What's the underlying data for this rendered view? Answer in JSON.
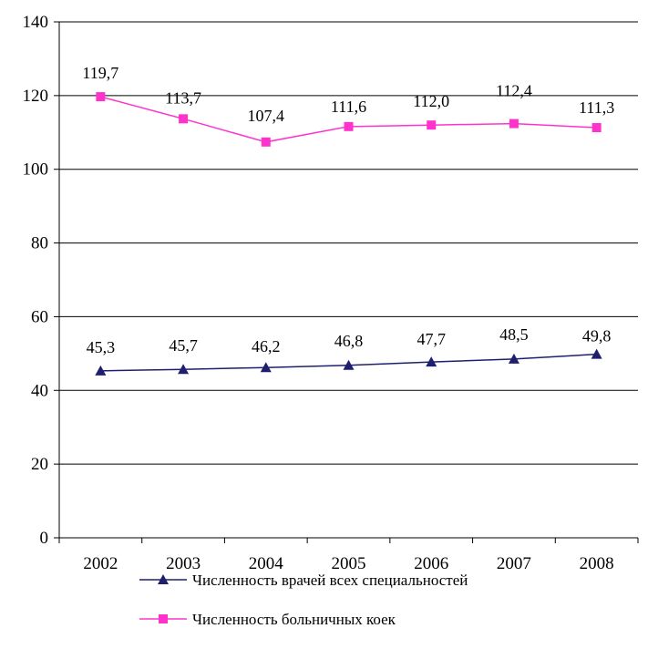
{
  "chart_data": {
    "type": "line",
    "title": "",
    "xlabel": "",
    "ylabel": "",
    "categories": [
      "2002",
      "2003",
      "2004",
      "2005",
      "2006",
      "2007",
      "2008"
    ],
    "ylim": [
      0,
      140
    ],
    "yticks": [
      0,
      20,
      40,
      60,
      80,
      100,
      120,
      140
    ],
    "grid": true,
    "legend_position": "bottom",
    "series": [
      {
        "name": "Численность врачей всех специальностей",
        "values": [
          45.3,
          45.7,
          46.2,
          46.8,
          47.7,
          48.5,
          49.8
        ],
        "labels": [
          "45,3",
          "45,7",
          "46,2",
          "46,8",
          "47,7",
          "48,5",
          "49,8"
        ],
        "color": "#1f1f6e",
        "marker": "triangle"
      },
      {
        "name": "Численность больничных коек",
        "values": [
          119.7,
          113.7,
          107.4,
          111.6,
          112.0,
          112.4,
          111.3
        ],
        "labels": [
          "119,7",
          "113,7",
          "107,4",
          "111,6",
          "112,0",
          "112,4",
          "111,3"
        ],
        "color": "#ff33cc",
        "marker": "square"
      }
    ]
  }
}
